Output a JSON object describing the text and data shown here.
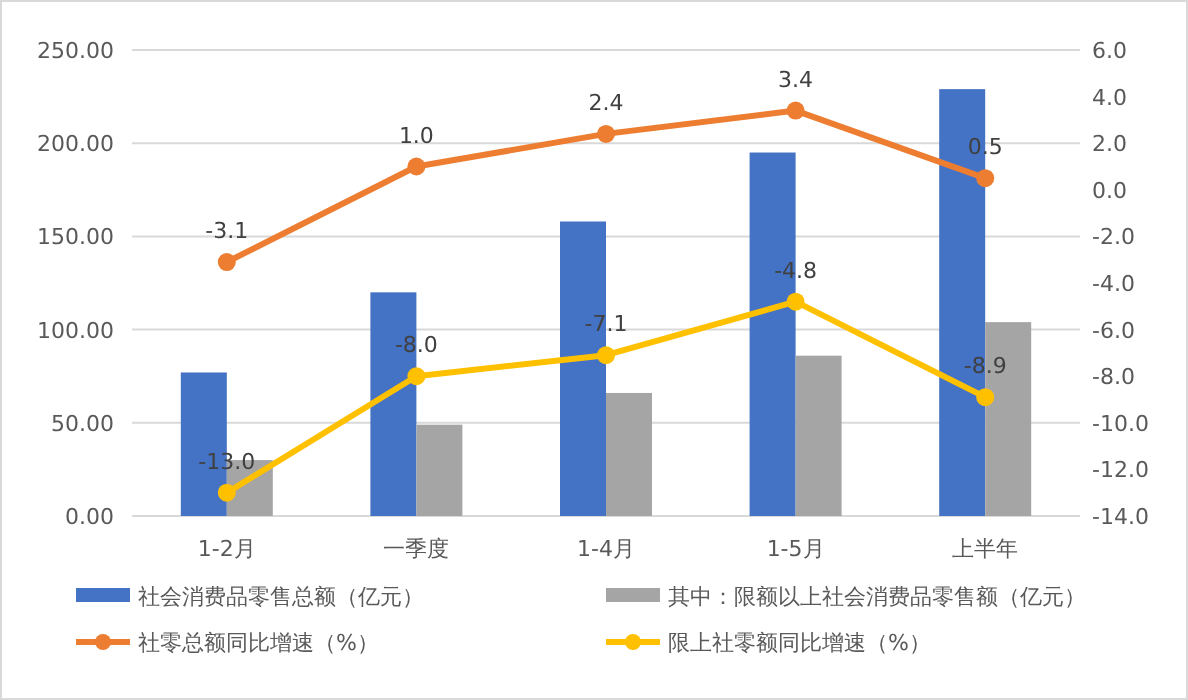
{
  "chart_data": {
    "type": "bar",
    "categories": [
      "1-2月",
      "一季度",
      "1-4月",
      "1-5月",
      "上半年"
    ],
    "series": [
      {
        "name": "社会消费品零售总额（亿元）",
        "color": "#4472c4",
        "values": [
          77,
          120,
          158,
          195,
          229
        ]
      },
      {
        "name": "其中：限额以上社会消费品零售额（亿元）",
        "color": "#a5a5a5",
        "values": [
          30,
          49,
          66,
          86,
          104
        ]
      },
      {
        "name": "社零总额同比增速（%）",
        "type": "line",
        "axis": "y2",
        "color": "#ed7d31",
        "values": [
          -3.1,
          1.0,
          2.4,
          3.4,
          0.5
        ],
        "value_labels": [
          "-3.1",
          "1.0",
          "2.4",
          "3.4",
          "0.5"
        ]
      },
      {
        "name": "限上社零额同比增速（%）",
        "type": "line",
        "axis": "y2",
        "color": "#ffc000",
        "values": [
          -13.0,
          -8.0,
          -7.1,
          -4.8,
          -8.9
        ],
        "value_labels": [
          "-13.0",
          "-8.0",
          "-7.1",
          "-4.8",
          "-8.9"
        ]
      }
    ],
    "ylim": [
      0,
      250
    ],
    "yticks": [
      {
        "value": 0,
        "label": "0.00"
      },
      {
        "value": 50,
        "label": "50.00"
      },
      {
        "value": 100,
        "label": "100.00"
      },
      {
        "value": 150,
        "label": "150.00"
      },
      {
        "value": 200,
        "label": "200.00"
      },
      {
        "value": 250,
        "label": "250.00"
      }
    ],
    "y2lim": [
      -14,
      6
    ],
    "y2ticks": [
      {
        "value": -14,
        "label": "-14.0"
      },
      {
        "value": -12,
        "label": "-12.0"
      },
      {
        "value": -10,
        "label": "-10.0"
      },
      {
        "value": -8,
        "label": "-8.0"
      },
      {
        "value": -6,
        "label": "-6.0"
      },
      {
        "value": -4,
        "label": "-4.0"
      },
      {
        "value": -2,
        "label": "-2.0"
      },
      {
        "value": 0,
        "label": "0.0"
      },
      {
        "value": 2,
        "label": "2.0"
      },
      {
        "value": 4,
        "label": "4.0"
      },
      {
        "value": 6,
        "label": "6.0"
      }
    ],
    "grid": "y",
    "legend": "bottom",
    "marker": "circle",
    "line_style": "solid"
  }
}
